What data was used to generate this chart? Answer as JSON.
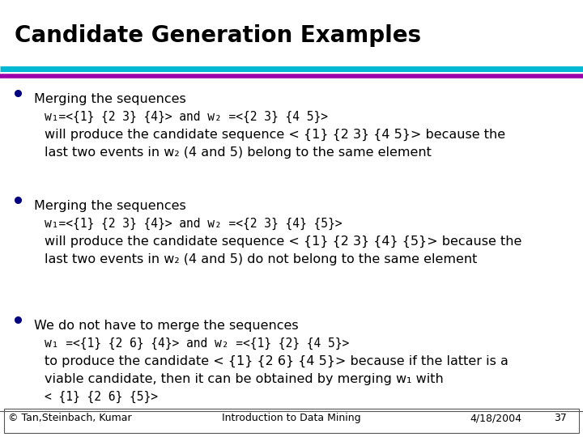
{
  "title": "Candidate Generation Examples",
  "title_fontsize": 20,
  "bg_color": "#ffffff",
  "title_color": "#000000",
  "line1_color": "#00b8d4",
  "line2_color": "#9900aa",
  "bullet_color": "#000080",
  "text_color": "#000000",
  "footer_color": "#000000",
  "bullets": [
    {
      "lines": [
        {
          "text": "Merging the sequences",
          "mono": false
        },
        {
          "text": "w₁=<{1} {2 3} {4}> and w₂ =<{2 3} {4 5}>",
          "mono": true
        },
        {
          "text": "will produce the candidate sequence < {1} {2 3} {4 5}> because the",
          "mono": false
        },
        {
          "text": "last two events in w₂ (4 and 5) belong to the same element",
          "mono": false
        }
      ]
    },
    {
      "lines": [
        {
          "text": "Merging the sequences",
          "mono": false
        },
        {
          "text": "w₁=<{1} {2 3} {4}> and w₂ =<{2 3} {4} {5}>",
          "mono": true
        },
        {
          "text": "will produce the candidate sequence < {1} {2 3} {4} {5}> because the",
          "mono": false
        },
        {
          "text": "last two events in w₂ (4 and 5) do not belong to the same element",
          "mono": false
        }
      ]
    },
    {
      "lines": [
        {
          "text": "We do not have to merge the sequences",
          "mono": false
        },
        {
          "text": "w₁ =<{1} {2 6} {4}> and w₂ =<{1} {2} {4 5}>",
          "mono": true
        },
        {
          "text": "to produce the candidate < {1} {2 6} {4 5}> because if the latter is a",
          "mono": false
        },
        {
          "text": "viable candidate, then it can be obtained by merging w₁ with",
          "mono": false
        },
        {
          "text": "< {1} {2 6} {5}>",
          "mono": true
        }
      ]
    }
  ],
  "footer_left": "© Tan,Steinbach, Kumar",
  "footer_center": "Introduction to Data Mining",
  "footer_right": "4/18/2004",
  "footer_page": "37",
  "text_fontsize": 11.5,
  "mono_fontsize": 10.5,
  "footer_fontsize": 9
}
